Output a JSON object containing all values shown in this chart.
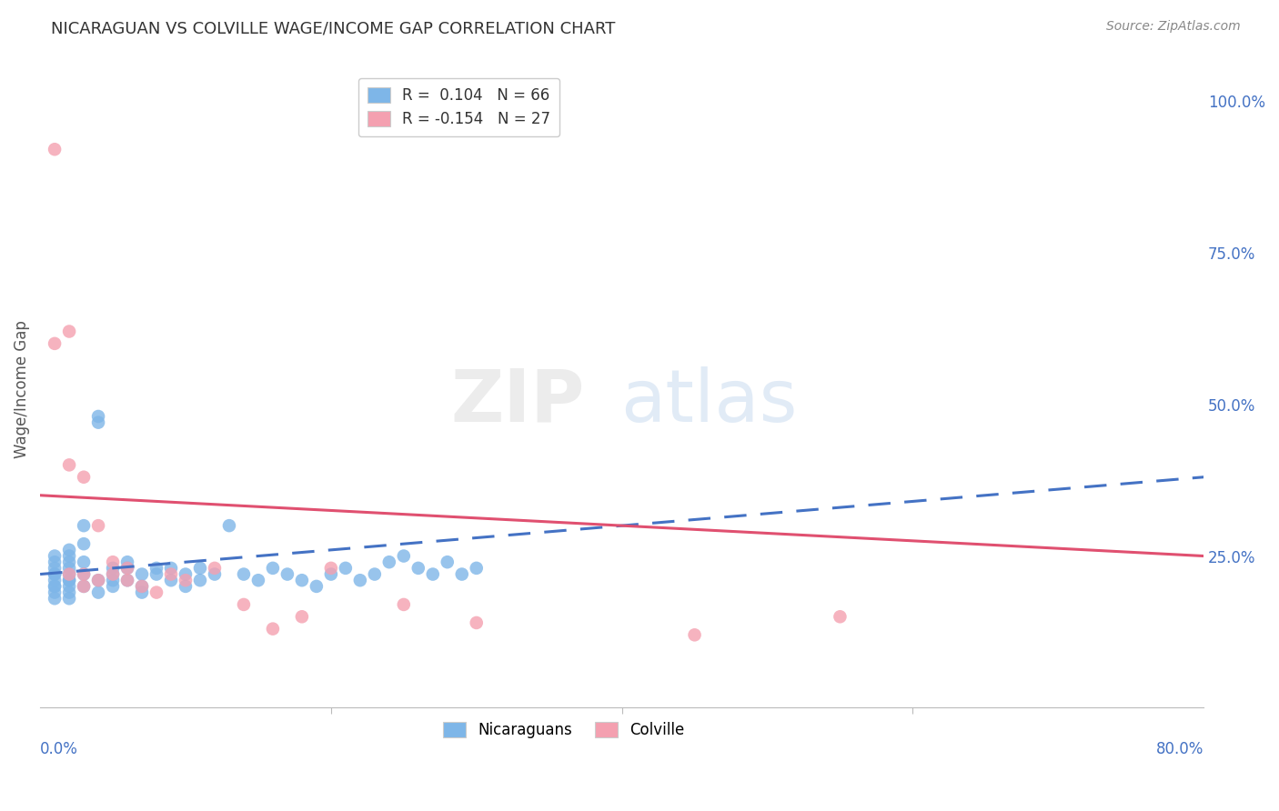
{
  "title": "NICARAGUAN VS COLVILLE WAGE/INCOME GAP CORRELATION CHART",
  "source": "Source: ZipAtlas.com",
  "ylabel": "Wage/Income Gap",
  "ytick_labels": [
    "25.0%",
    "50.0%",
    "75.0%",
    "100.0%"
  ],
  "ytick_values": [
    0.25,
    0.5,
    0.75,
    1.0
  ],
  "legend_blue_R": "0.104",
  "legend_blue_N": "66",
  "legend_pink_R": "-0.154",
  "legend_pink_N": "27",
  "legend_label_blue": "Nicaraguans",
  "legend_label_pink": "Colville",
  "blue_color": "#7EB6E8",
  "pink_color": "#F4A0B0",
  "trendline_blue_color": "#4472C4",
  "trendline_pink_color": "#E05070",
  "background_color": "#FFFFFF",
  "grid_color": "#DDDDDD",
  "blue_x": [
    0.01,
    0.01,
    0.01,
    0.01,
    0.01,
    0.01,
    0.01,
    0.01,
    0.01,
    0.01,
    0.02,
    0.02,
    0.02,
    0.02,
    0.02,
    0.02,
    0.02,
    0.02,
    0.02,
    0.02,
    0.03,
    0.03,
    0.03,
    0.03,
    0.03,
    0.04,
    0.04,
    0.04,
    0.04,
    0.05,
    0.05,
    0.05,
    0.05,
    0.06,
    0.06,
    0.06,
    0.07,
    0.07,
    0.07,
    0.08,
    0.08,
    0.09,
    0.09,
    0.1,
    0.1,
    0.11,
    0.11,
    0.12,
    0.13,
    0.14,
    0.15,
    0.16,
    0.17,
    0.18,
    0.19,
    0.2,
    0.21,
    0.22,
    0.23,
    0.24,
    0.25,
    0.26,
    0.27,
    0.28,
    0.29,
    0.3
  ],
  "blue_y": [
    0.22,
    0.2,
    0.24,
    0.21,
    0.23,
    0.19,
    0.22,
    0.25,
    0.2,
    0.18,
    0.21,
    0.24,
    0.19,
    0.22,
    0.26,
    0.2,
    0.23,
    0.18,
    0.21,
    0.25,
    0.27,
    0.22,
    0.3,
    0.2,
    0.24,
    0.19,
    0.21,
    0.47,
    0.48,
    0.21,
    0.23,
    0.2,
    0.22,
    0.21,
    0.23,
    0.24,
    0.2,
    0.22,
    0.19,
    0.22,
    0.23,
    0.21,
    0.23,
    0.2,
    0.22,
    0.23,
    0.21,
    0.22,
    0.3,
    0.22,
    0.21,
    0.23,
    0.22,
    0.21,
    0.2,
    0.22,
    0.23,
    0.21,
    0.22,
    0.24,
    0.25,
    0.23,
    0.22,
    0.24,
    0.22,
    0.23
  ],
  "pink_x": [
    0.01,
    0.01,
    0.02,
    0.02,
    0.02,
    0.03,
    0.03,
    0.03,
    0.04,
    0.04,
    0.05,
    0.05,
    0.06,
    0.06,
    0.07,
    0.08,
    0.09,
    0.1,
    0.12,
    0.14,
    0.16,
    0.18,
    0.2,
    0.25,
    0.3,
    0.45,
    0.55
  ],
  "pink_y": [
    0.92,
    0.6,
    0.62,
    0.4,
    0.22,
    0.38,
    0.22,
    0.2,
    0.21,
    0.3,
    0.24,
    0.22,
    0.21,
    0.23,
    0.2,
    0.19,
    0.22,
    0.21,
    0.23,
    0.17,
    0.13,
    0.15,
    0.23,
    0.17,
    0.14,
    0.12,
    0.15
  ],
  "xmin": 0.0,
  "xmax": 0.8,
  "ymin": 0.0,
  "ymax": 1.05,
  "blue_trend_x": [
    0.0,
    0.8
  ],
  "blue_trend_y": [
    0.22,
    0.38
  ],
  "pink_trend_x": [
    0.0,
    0.8
  ],
  "pink_trend_y": [
    0.35,
    0.25
  ]
}
